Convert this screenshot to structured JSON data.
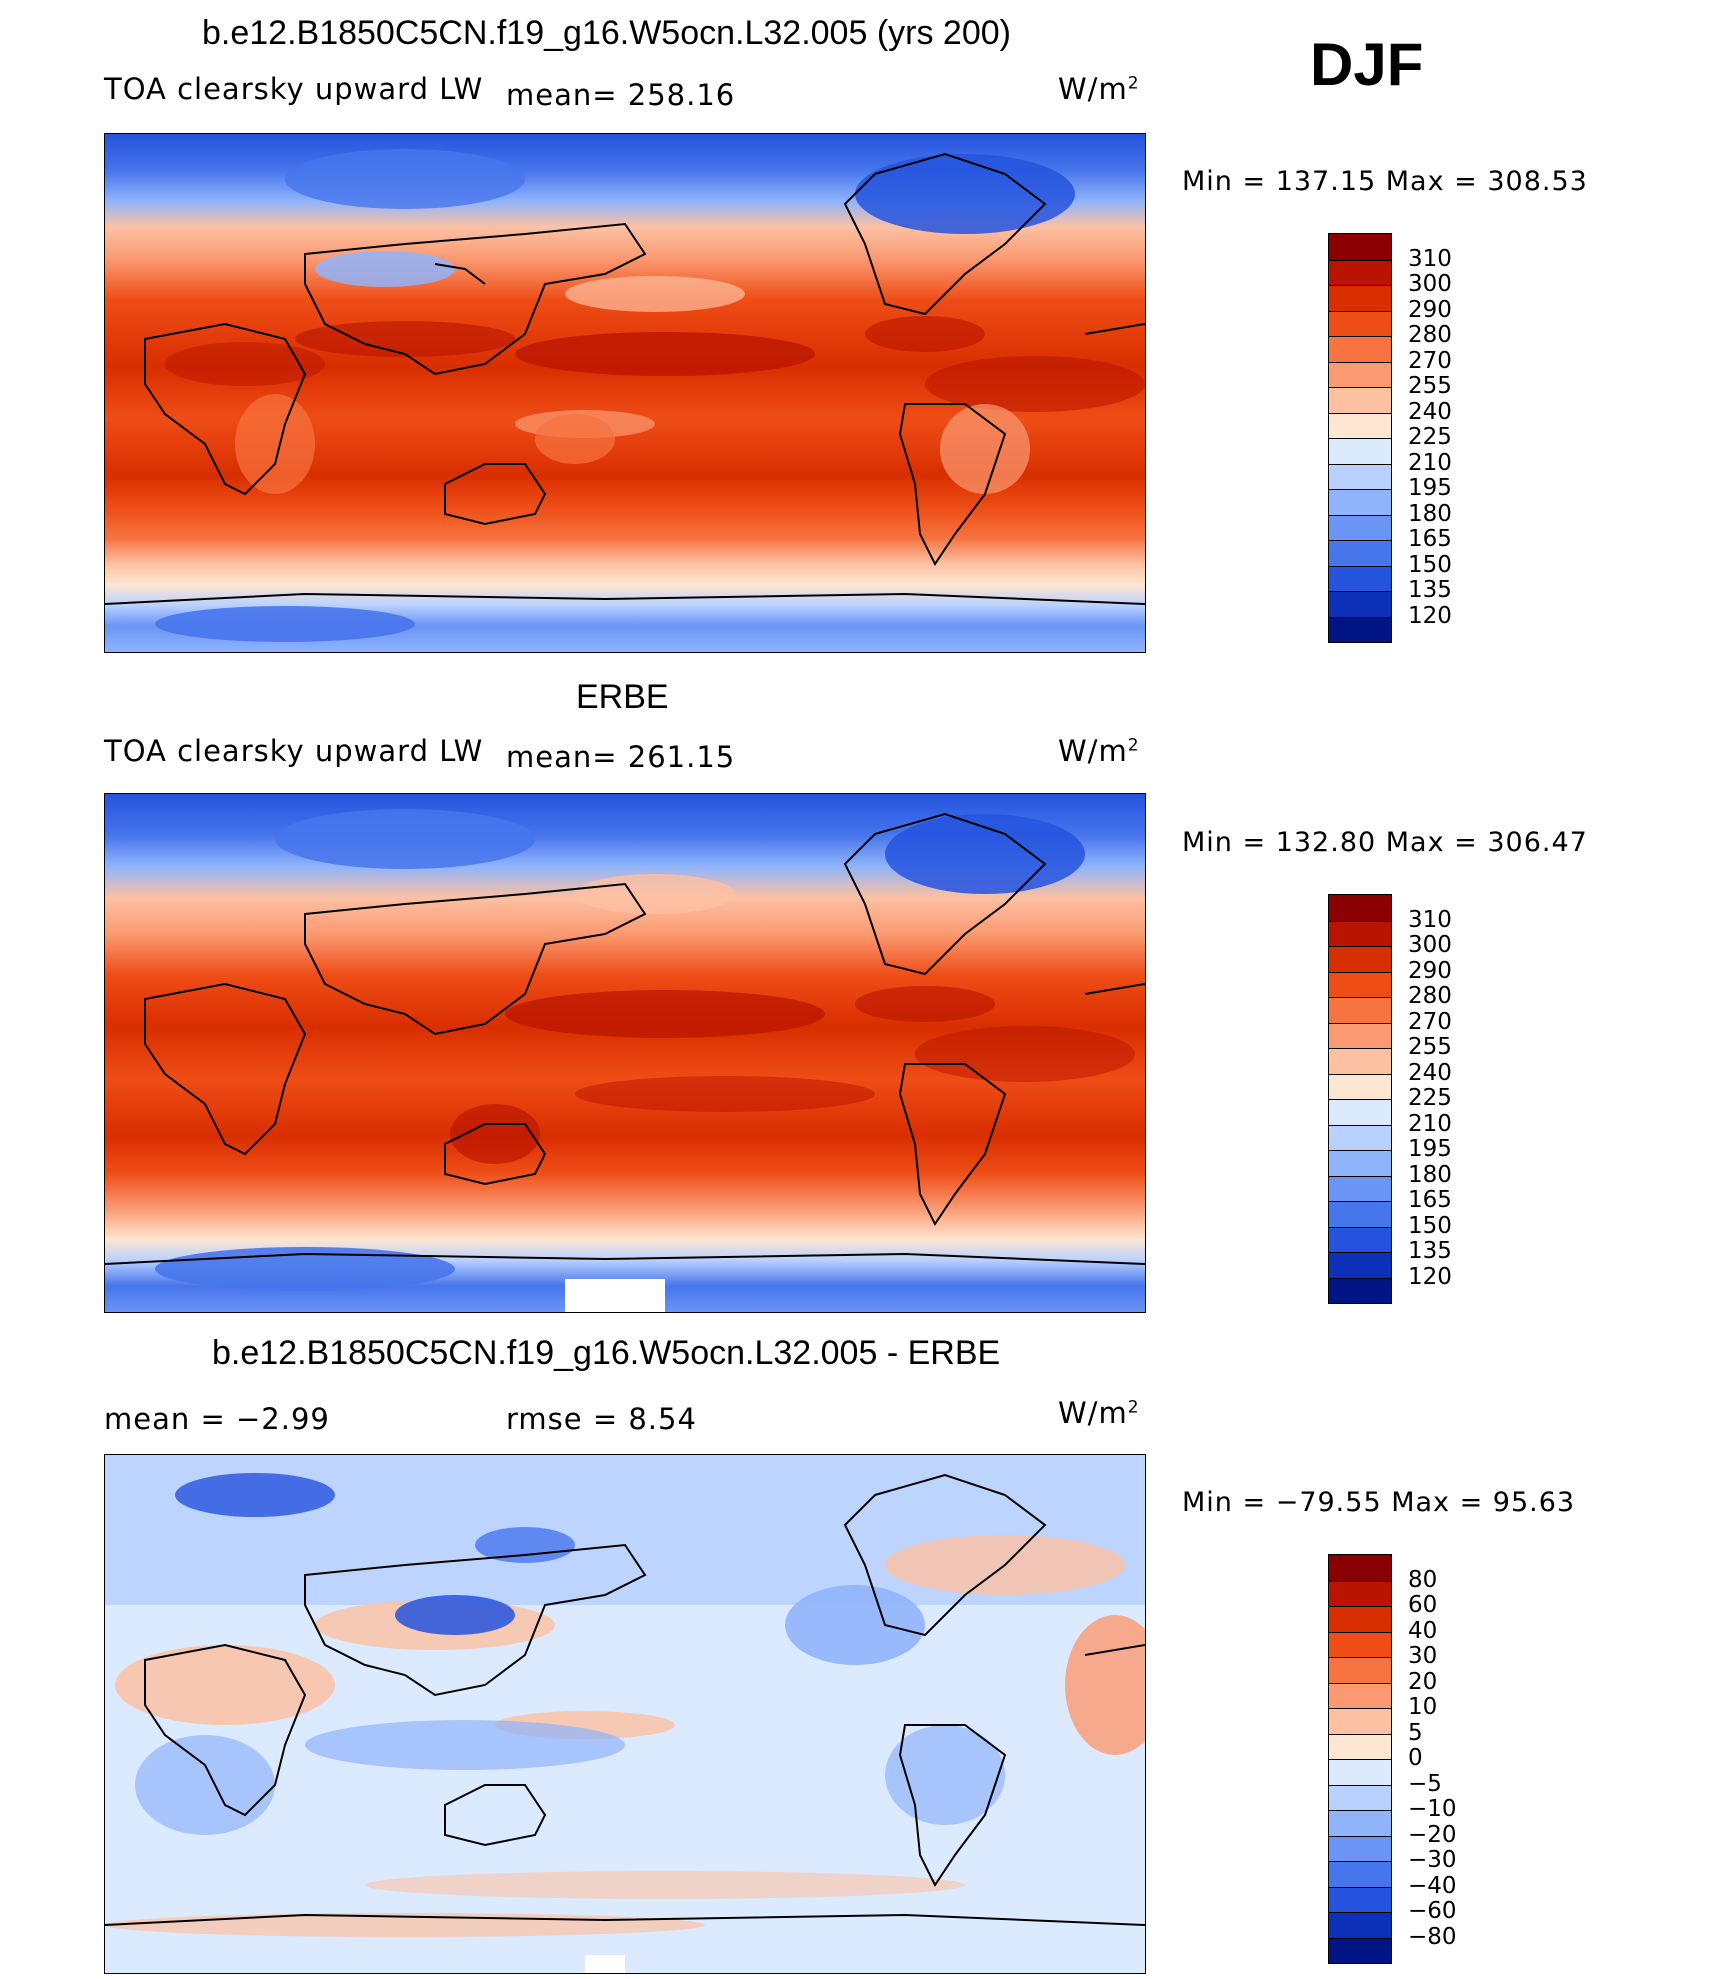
{
  "season": "DJF",
  "units_label": "W/m",
  "units_sup": "2",
  "panel1": {
    "title": "b.e12.B1850C5CN.f19_g16.W5ocn.L32.005 (yrs 200)",
    "variable": "TOA clearsky upward LW",
    "mean_label": "mean= 258.16",
    "minmax": "Min = 137.15 Max = 308.53"
  },
  "panel2": {
    "title": "ERBE",
    "variable": "TOA clearsky upward LW",
    "mean_label": "mean= 261.15",
    "minmax": "Min = 132.80 Max = 306.47"
  },
  "panel3": {
    "title": "b.e12.B1850C5CN.f19_g16.W5ocn.L32.005 - ERBE",
    "mean_label": "mean =   −2.99",
    "rmse_label": "rmse =    8.54",
    "minmax": "Min = −79.55 Max =  95.63"
  },
  "colorbar_main": {
    "labels": [
      "310",
      "300",
      "290",
      "280",
      "270",
      "255",
      "240",
      "225",
      "210",
      "195",
      "180",
      "165",
      "150",
      "135",
      "120"
    ],
    "colors": [
      "#8a0000",
      "#b81400",
      "#d92e00",
      "#ee4d16",
      "#f77340",
      "#fb9a72",
      "#fcc1a3",
      "#fde6d2",
      "#dceaff",
      "#b9d1ff",
      "#90b4fb",
      "#6a94f5",
      "#4775ec",
      "#2553de",
      "#0d30b8",
      "#001583"
    ]
  },
  "colorbar_diff": {
    "labels": [
      "80",
      "60",
      "40",
      "30",
      "20",
      "10",
      "5",
      "0",
      "−5",
      "−10",
      "−20",
      "−30",
      "−40",
      "−60",
      "−80"
    ],
    "colors": [
      "#8a0000",
      "#b81400",
      "#d92e00",
      "#ee4d16",
      "#f77340",
      "#fb9a72",
      "#fcc1a3",
      "#fde6d2",
      "#dceaff",
      "#b9d1ff",
      "#90b4fb",
      "#6a94f5",
      "#4775ec",
      "#2553de",
      "#0d30b8",
      "#001583"
    ]
  }
}
